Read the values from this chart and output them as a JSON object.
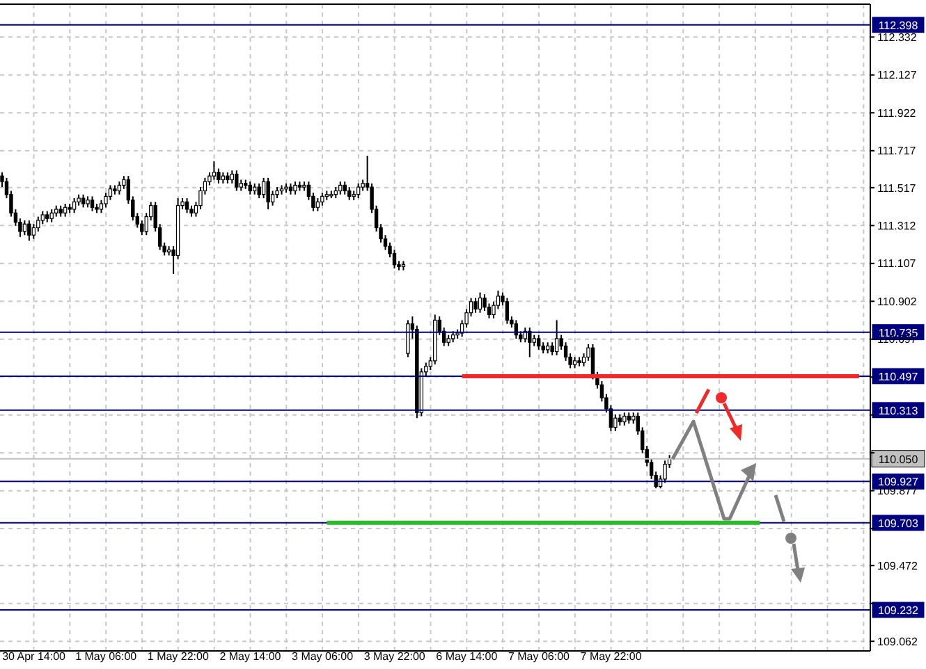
{
  "chart_data": {
    "type": "candlestick",
    "color": "#000000",
    "categories": [
      null,
      null,
      null,
      null,
      null,
      null,
      null,
      "30 Apr 14:00",
      null,
      null,
      null,
      null,
      null,
      null,
      null,
      null,
      null,
      null,
      null,
      null,
      null,
      null,
      null,
      "1 May 06:00",
      null,
      null,
      null,
      null,
      null,
      null,
      null,
      null,
      null,
      null,
      null,
      null,
      null,
      null,
      null,
      "1 May 22:00",
      null,
      null,
      null,
      null,
      null,
      null,
      null,
      null,
      null,
      null,
      null,
      null,
      null,
      null,
      null,
      "2 May 14:00",
      null,
      null,
      null,
      null,
      null,
      null,
      null,
      null,
      null,
      null,
      null,
      null,
      null,
      null,
      null,
      "3 May 06:00",
      null,
      null,
      null,
      null,
      null,
      null,
      null,
      null,
      null,
      null,
      null,
      null,
      null,
      null,
      null,
      "3 May 22:00",
      null,
      null,
      null,
      null,
      null,
      null,
      null,
      null,
      null,
      null,
      null,
      null,
      null,
      null,
      null,
      "6 May 14:00",
      null,
      null,
      null,
      null,
      null,
      null,
      null,
      null,
      null,
      null,
      null,
      null,
      null,
      null,
      null,
      "7 May 06:00",
      null,
      null,
      null,
      null,
      null,
      null,
      null,
      null,
      null,
      null,
      null,
      null,
      null,
      null,
      null,
      "7 May 22:00",
      null,
      null,
      null,
      null,
      null,
      null,
      null,
      null,
      null,
      null,
      null,
      null,
      null,
      null,
      null,
      null,
      null,
      null,
      null,
      null,
      null,
      null,
      null,
      null,
      null,
      null,
      null,
      null,
      null,
      null,
      null,
      null,
      null,
      null,
      null,
      null,
      null,
      null,
      null,
      null,
      null,
      null,
      null,
      null,
      null,
      null,
      null,
      null,
      null,
      null,
      null,
      null,
      null,
      null,
      null,
      null,
      null
    ],
    "ohlc": [
      [
        111.58,
        111.6,
        111.52,
        111.55
      ],
      [
        111.55,
        111.57,
        111.46,
        111.48
      ],
      [
        111.48,
        111.5,
        111.36,
        111.38
      ],
      [
        111.38,
        111.4,
        111.31,
        111.33
      ],
      [
        111.33,
        111.35,
        111.25,
        111.28
      ],
      [
        111.28,
        111.34,
        111.26,
        111.32
      ],
      [
        111.32,
        111.34,
        111.23,
        111.26
      ],
      [
        111.26,
        111.32,
        111.24,
        111.3
      ],
      [
        111.3,
        111.36,
        111.28,
        111.34
      ],
      [
        111.34,
        111.39,
        111.32,
        111.37
      ],
      [
        111.37,
        111.39,
        111.33,
        111.35
      ],
      [
        111.35,
        111.4,
        111.33,
        111.38
      ],
      [
        111.38,
        111.42,
        111.36,
        111.4
      ],
      [
        111.4,
        111.42,
        111.36,
        111.38
      ],
      [
        111.38,
        111.43,
        111.36,
        111.41
      ],
      [
        111.41,
        111.43,
        111.38,
        111.4
      ],
      [
        111.4,
        111.46,
        111.38,
        111.44
      ],
      [
        111.44,
        111.48,
        111.42,
        111.46
      ],
      [
        111.46,
        111.48,
        111.41,
        111.43
      ],
      [
        111.43,
        111.47,
        111.41,
        111.45
      ],
      [
        111.45,
        111.47,
        111.39,
        111.41
      ],
      [
        111.41,
        111.43,
        111.38,
        111.4
      ],
      [
        111.4,
        111.45,
        111.38,
        111.43
      ],
      [
        111.43,
        111.49,
        111.41,
        111.47
      ],
      [
        111.47,
        111.53,
        111.45,
        111.51
      ],
      [
        111.51,
        111.53,
        111.48,
        111.5
      ],
      [
        111.5,
        111.55,
        111.48,
        111.53
      ],
      [
        111.53,
        111.58,
        111.51,
        111.56
      ],
      [
        111.56,
        111.58,
        111.43,
        111.45
      ],
      [
        111.45,
        111.47,
        111.34,
        111.36
      ],
      [
        111.36,
        111.38,
        111.3,
        111.32
      ],
      [
        111.32,
        111.34,
        111.26,
        111.28
      ],
      [
        111.28,
        111.38,
        111.26,
        111.36
      ],
      [
        111.36,
        111.44,
        111.34,
        111.42
      ],
      [
        111.42,
        111.44,
        111.28,
        111.3
      ],
      [
        111.3,
        111.32,
        111.18,
        111.2
      ],
      [
        111.2,
        111.22,
        111.15,
        111.17
      ],
      [
        111.17,
        111.2,
        111.15,
        111.18
      ],
      [
        111.18,
        111.2,
        111.05,
        111.15
      ],
      [
        111.15,
        111.46,
        111.13,
        111.42
      ],
      [
        111.42,
        111.46,
        111.4,
        111.44
      ],
      [
        111.44,
        111.46,
        111.38,
        111.4
      ],
      [
        111.4,
        111.42,
        111.36,
        111.38
      ],
      [
        111.38,
        111.44,
        111.36,
        111.42
      ],
      [
        111.42,
        111.52,
        111.4,
        111.5
      ],
      [
        111.5,
        111.57,
        111.48,
        111.55
      ],
      [
        111.55,
        111.6,
        111.53,
        111.58
      ],
      [
        111.58,
        111.66,
        111.56,
        111.6
      ],
      [
        111.6,
        111.62,
        111.54,
        111.56
      ],
      [
        111.56,
        111.6,
        111.54,
        111.58
      ],
      [
        111.58,
        111.6,
        111.54,
        111.56
      ],
      [
        111.56,
        111.61,
        111.54,
        111.59
      ],
      [
        111.59,
        111.61,
        111.5,
        111.52
      ],
      [
        111.52,
        111.56,
        111.5,
        111.54
      ],
      [
        111.54,
        111.56,
        111.51,
        111.53
      ],
      [
        111.53,
        111.55,
        111.48,
        111.5
      ],
      [
        111.5,
        111.54,
        111.48,
        111.52
      ],
      [
        111.52,
        111.54,
        111.46,
        111.48
      ],
      [
        111.48,
        111.57,
        111.46,
        111.55
      ],
      [
        111.55,
        111.57,
        111.4,
        111.44
      ],
      [
        111.44,
        111.5,
        111.42,
        111.48
      ],
      [
        111.48,
        111.52,
        111.46,
        111.5
      ],
      [
        111.5,
        111.53,
        111.48,
        111.51
      ],
      [
        111.51,
        111.54,
        111.49,
        111.52
      ],
      [
        111.52,
        111.54,
        111.48,
        111.5
      ],
      [
        111.5,
        111.55,
        111.48,
        111.53
      ],
      [
        111.53,
        111.55,
        111.5,
        111.52
      ],
      [
        111.52,
        111.55,
        111.5,
        111.53
      ],
      [
        111.53,
        111.55,
        111.45,
        111.47
      ],
      [
        111.47,
        111.49,
        111.39,
        111.41
      ],
      [
        111.41,
        111.46,
        111.39,
        111.44
      ],
      [
        111.44,
        111.49,
        111.42,
        111.47
      ],
      [
        111.47,
        111.5,
        111.45,
        111.48
      ],
      [
        111.48,
        111.5,
        111.46,
        111.48
      ],
      [
        111.48,
        111.52,
        111.46,
        111.5
      ],
      [
        111.5,
        111.55,
        111.48,
        111.53
      ],
      [
        111.53,
        111.55,
        111.48,
        111.5
      ],
      [
        111.5,
        111.52,
        111.45,
        111.47
      ],
      [
        111.47,
        111.5,
        111.45,
        111.48
      ],
      [
        111.48,
        111.54,
        111.46,
        111.52
      ],
      [
        111.52,
        111.56,
        111.5,
        111.54
      ],
      [
        111.54,
        111.69,
        111.5,
        111.52
      ],
      [
        111.52,
        111.54,
        111.38,
        111.4
      ],
      [
        111.4,
        111.42,
        111.28,
        111.3
      ],
      [
        111.3,
        111.32,
        111.22,
        111.24
      ],
      [
        111.24,
        111.26,
        111.18,
        111.2
      ],
      [
        111.2,
        111.22,
        111.14,
        111.16
      ],
      [
        111.16,
        111.18,
        111.08,
        111.1
      ],
      [
        111.1,
        111.12,
        111.07,
        111.09
      ],
      [
        111.09,
        111.12,
        111.07,
        111.1
      ],
      [
        110.62,
        110.8,
        110.6,
        110.78
      ],
      [
        110.78,
        110.82,
        110.7,
        110.75
      ],
      [
        110.75,
        110.77,
        110.27,
        110.3
      ],
      [
        110.3,
        110.54,
        110.28,
        110.52
      ],
      [
        110.52,
        110.57,
        110.5,
        110.55
      ],
      [
        110.55,
        110.6,
        110.53,
        110.58
      ],
      [
        110.58,
        110.83,
        110.56,
        110.8
      ],
      [
        110.8,
        110.82,
        110.72,
        110.74
      ],
      [
        110.74,
        110.76,
        110.66,
        110.68
      ],
      [
        110.68,
        110.72,
        110.66,
        110.7
      ],
      [
        110.7,
        110.74,
        110.68,
        110.72
      ],
      [
        110.72,
        110.75,
        110.7,
        110.73
      ],
      [
        110.73,
        110.8,
        110.71,
        110.78
      ],
      [
        110.78,
        110.86,
        110.76,
        110.84
      ],
      [
        110.84,
        110.92,
        110.82,
        110.9
      ],
      [
        110.9,
        110.92,
        110.84,
        110.86
      ],
      [
        110.86,
        110.95,
        110.84,
        110.92
      ],
      [
        110.92,
        110.94,
        110.85,
        110.87
      ],
      [
        110.87,
        110.89,
        110.81,
        110.83
      ],
      [
        110.83,
        110.9,
        110.81,
        110.88
      ],
      [
        110.88,
        110.96,
        110.86,
        110.93
      ],
      [
        110.93,
        110.95,
        110.88,
        110.9
      ],
      [
        110.9,
        110.92,
        110.78,
        110.8
      ],
      [
        110.8,
        110.82,
        110.76,
        110.78
      ],
      [
        110.78,
        110.8,
        110.7,
        110.72
      ],
      [
        110.72,
        110.74,
        110.68,
        110.7
      ],
      [
        110.7,
        110.76,
        110.68,
        110.74
      ],
      [
        110.74,
        110.76,
        110.6,
        110.68
      ],
      [
        110.68,
        110.72,
        110.66,
        110.7
      ],
      [
        110.7,
        110.72,
        110.64,
        110.66
      ],
      [
        110.66,
        110.68,
        110.62,
        110.64
      ],
      [
        110.64,
        110.68,
        110.62,
        110.66
      ],
      [
        110.66,
        110.68,
        110.61,
        110.63
      ],
      [
        110.63,
        110.8,
        110.61,
        110.7
      ],
      [
        110.7,
        110.72,
        110.64,
        110.66
      ],
      [
        110.66,
        110.68,
        110.58,
        110.6
      ],
      [
        110.6,
        110.62,
        110.54,
        110.56
      ],
      [
        110.56,
        110.6,
        110.54,
        110.58
      ],
      [
        110.58,
        110.6,
        110.55,
        110.57
      ],
      [
        110.57,
        110.62,
        110.55,
        110.6
      ],
      [
        110.6,
        110.67,
        110.58,
        110.65
      ],
      [
        110.65,
        110.67,
        110.48,
        110.5
      ],
      [
        110.5,
        110.52,
        110.43,
        110.45
      ],
      [
        110.45,
        110.47,
        110.36,
        110.38
      ],
      [
        110.38,
        110.4,
        110.3,
        110.32
      ],
      [
        110.32,
        110.34,
        110.2,
        110.22
      ],
      [
        110.22,
        110.29,
        110.2,
        110.27
      ],
      [
        110.27,
        110.29,
        110.23,
        110.25
      ],
      [
        110.25,
        110.3,
        110.23,
        110.28
      ],
      [
        110.28,
        110.3,
        110.24,
        110.26
      ],
      [
        110.26,
        110.3,
        110.24,
        110.28
      ],
      [
        110.28,
        110.3,
        110.18,
        110.2
      ],
      [
        110.2,
        110.22,
        110.08,
        110.1
      ],
      [
        110.1,
        110.12,
        110.01,
        110.03
      ],
      [
        110.03,
        110.05,
        109.94,
        109.96
      ],
      [
        109.96,
        109.98,
        109.89,
        109.9
      ],
      [
        109.9,
        109.96,
        109.89,
        109.94
      ],
      [
        109.94,
        110.04,
        109.92,
        110.02
      ],
      [
        110.02,
        110.07,
        110.0,
        110.05
      ],
      null,
      null,
      null,
      null,
      null,
      null,
      null,
      null,
      null,
      null,
      null,
      null,
      null,
      null,
      null,
      null,
      null,
      null,
      null,
      null,
      null,
      null,
      null,
      null,
      null,
      null,
      null,
      null,
      null,
      null,
      null,
      null,
      null,
      null,
      null,
      null,
      null,
      null,
      null,
      null,
      null,
      null,
      null,
      null
    ],
    "series": [
      {
        "type": "line",
        "color": "#ee2a2a",
        "values": [
          null,
          null,
          null,
          null,
          null,
          null,
          null,
          null,
          null,
          null,
          null,
          null,
          null,
          null,
          null,
          null,
          null,
          null,
          null,
          null,
          null,
          null,
          null,
          null,
          null,
          null,
          null,
          null,
          null,
          null,
          null,
          null,
          null,
          null,
          null,
          null,
          null,
          null,
          null,
          null,
          null,
          null,
          null,
          null,
          null,
          null,
          null,
          null,
          null,
          null,
          null,
          null,
          null,
          null,
          null,
          null,
          null,
          null,
          null,
          null,
          null,
          null,
          null,
          null,
          null,
          null,
          null,
          null,
          null,
          null,
          null,
          null,
          null,
          null,
          null,
          null,
          null,
          null,
          null,
          null,
          null,
          null,
          null,
          null,
          null,
          null,
          null,
          null,
          null,
          null,
          null,
          null,
          null,
          null,
          null,
          null,
          null,
          null,
          null,
          null,
          null,
          null,
          110.497,
          110.497,
          110.497,
          110.497,
          110.497,
          110.497,
          110.497,
          110.497,
          110.497,
          110.497,
          110.497,
          110.497,
          110.497,
          110.497,
          110.497,
          110.497,
          110.497,
          110.497,
          110.497,
          110.497,
          110.497,
          110.497,
          110.497,
          110.497,
          110.497,
          110.497,
          110.497,
          110.497,
          110.497,
          110.497,
          110.497,
          110.497,
          110.497,
          110.497,
          110.497,
          110.497,
          110.497,
          110.497,
          110.497,
          110.497,
          110.497,
          110.497,
          110.497,
          110.497,
          110.497,
          110.497,
          110.497,
          110.497,
          110.497,
          110.497,
          110.497,
          110.497,
          110.497,
          110.497,
          110.497,
          110.497,
          110.497,
          110.497,
          110.497,
          110.497,
          110.497,
          110.497,
          110.497,
          110.497,
          110.497,
          110.497,
          110.497,
          110.497,
          110.497,
          110.497,
          110.497,
          110.497,
          110.497,
          110.497,
          110.497,
          110.497,
          110.497,
          110.497,
          110.497,
          110.497,
          110.497,
          110.497,
          110.497,
          110.497,
          110.497,
          110.497,
          110.497,
          110.497,
          110.497,
          null,
          null
        ]
      },
      {
        "type": "line",
        "color": "#2db82d",
        "values": [
          null,
          null,
          null,
          null,
          null,
          null,
          null,
          null,
          null,
          null,
          null,
          null,
          null,
          null,
          null,
          null,
          null,
          null,
          null,
          null,
          null,
          null,
          null,
          null,
          null,
          null,
          null,
          null,
          null,
          null,
          null,
          null,
          null,
          null,
          null,
          null,
          null,
          null,
          null,
          null,
          null,
          null,
          null,
          null,
          null,
          null,
          null,
          null,
          null,
          null,
          null,
          null,
          null,
          null,
          null,
          null,
          null,
          null,
          null,
          null,
          null,
          null,
          null,
          null,
          null,
          null,
          null,
          null,
          null,
          null,
          null,
          null,
          109.703,
          109.703,
          109.703,
          109.703,
          109.703,
          109.703,
          109.703,
          109.703,
          109.703,
          109.703,
          109.703,
          109.703,
          109.703,
          109.703,
          109.703,
          109.703,
          109.703,
          109.703,
          109.703,
          109.703,
          109.703,
          109.703,
          109.703,
          109.703,
          109.703,
          109.703,
          109.703,
          109.703,
          109.703,
          109.703,
          109.703,
          109.703,
          109.703,
          109.703,
          109.703,
          109.703,
          109.703,
          109.703,
          109.703,
          109.703,
          109.703,
          109.703,
          109.703,
          109.703,
          109.703,
          109.703,
          109.703,
          109.703,
          109.703,
          109.703,
          109.703,
          109.703,
          109.703,
          109.703,
          109.703,
          109.703,
          109.703,
          109.703,
          109.703,
          109.703,
          109.703,
          109.703,
          109.703,
          109.703,
          109.703,
          109.703,
          109.703,
          109.703,
          109.703,
          109.703,
          109.703,
          109.703,
          109.703,
          109.703,
          109.703,
          109.703,
          109.703,
          109.703,
          109.703,
          109.703,
          109.703,
          109.703,
          109.703,
          109.703,
          109.703,
          109.703,
          109.703,
          109.703,
          109.703,
          109.703,
          109.703,
          109.703,
          109.703,
          109.703,
          109.703,
          109.703,
          109.703,
          null,
          null,
          null,
          null,
          null,
          null,
          null,
          null,
          null,
          null,
          null,
          null,
          null,
          null,
          null,
          null,
          null,
          null,
          null,
          null,
          null,
          null,
          null,
          null
        ]
      }
    ],
    "ylim": [
      109.01,
      112.51
    ],
    "yticks": [
      112.332,
      112.127,
      111.922,
      111.717,
      111.517,
      111.312,
      111.107,
      110.902,
      110.697,
      {
        "value": 110.492,
        "label": null
      },
      {
        "value": 110.287,
        "label": null
      },
      {
        "value": 110.082,
        "label": null
      },
      109.877,
      {
        "value": 109.672,
        "label": null
      },
      109.472,
      {
        "value": 109.267,
        "label": null
      },
      109.062
    ],
    "ref_lines": [
      {
        "axis": "y",
        "value": 112.398,
        "label": "112.398",
        "color": "#000080"
      },
      {
        "axis": "y",
        "value": 110.735,
        "label": "110.735",
        "color": "#000080"
      },
      {
        "axis": "y",
        "value": 110.497,
        "label": "110.497",
        "color": "#000080"
      },
      {
        "axis": "y",
        "value": 110.313,
        "label": "110.313",
        "color": "#000080"
      },
      {
        "axis": "y",
        "value": 110.05,
        "label": "110.050",
        "color": "#c0c0c0"
      },
      {
        "axis": "y",
        "value": 109.927,
        "label": "109.927",
        "color": "#000080"
      },
      {
        "axis": "y",
        "value": 109.703,
        "label": "109.703",
        "color": "#000080"
      },
      {
        "axis": "y",
        "value": 109.232,
        "label": "109.232",
        "color": "#000080"
      }
    ],
    "grid": true
  }
}
